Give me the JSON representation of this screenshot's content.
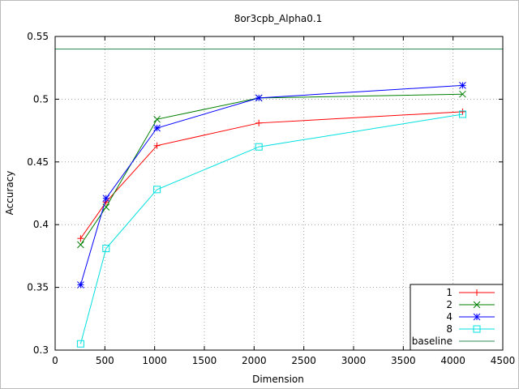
{
  "chart_data": {
    "type": "line",
    "title": "8or3cpb_Alpha0.1",
    "xlabel": "Dimension",
    "ylabel": "Accuracy",
    "xlim": [
      0,
      4500
    ],
    "ylim": [
      0.3,
      0.55
    ],
    "xticks": [
      0,
      500,
      1000,
      1500,
      2000,
      2500,
      3000,
      3500,
      4000,
      4500
    ],
    "yticks": [
      0.3,
      0.35,
      0.4,
      0.45,
      0.5,
      0.55
    ],
    "xtick_labels": [
      "0",
      "500",
      "1000",
      "1500",
      "2000",
      "2500",
      "3000",
      "3500",
      "4000",
      "4500"
    ],
    "ytick_labels": [
      "0.3",
      "0.35",
      "0.4",
      "0.45",
      "0.5",
      "0.55"
    ],
    "grid": true,
    "legend_position": "bottom-right",
    "x": [
      256,
      512,
      1024,
      2048,
      4096
    ],
    "series": [
      {
        "name": "1",
        "color": "#ff0000",
        "marker": "plus",
        "values": [
          0.389,
          0.418,
          0.463,
          0.481,
          0.49
        ]
      },
      {
        "name": "2",
        "color": "#008000",
        "marker": "x",
        "values": [
          0.384,
          0.414,
          0.484,
          0.501,
          0.504
        ]
      },
      {
        "name": "4",
        "color": "#0000ff",
        "marker": "star",
        "values": [
          0.352,
          0.421,
          0.477,
          0.501,
          0.511
        ]
      },
      {
        "name": "8",
        "color": "#00e0e0",
        "marker": "square",
        "values": [
          0.305,
          0.381,
          0.428,
          0.462,
          0.488
        ]
      }
    ],
    "baseline": {
      "name": "baseline",
      "color": "#2e8b57",
      "value": 0.54
    }
  }
}
